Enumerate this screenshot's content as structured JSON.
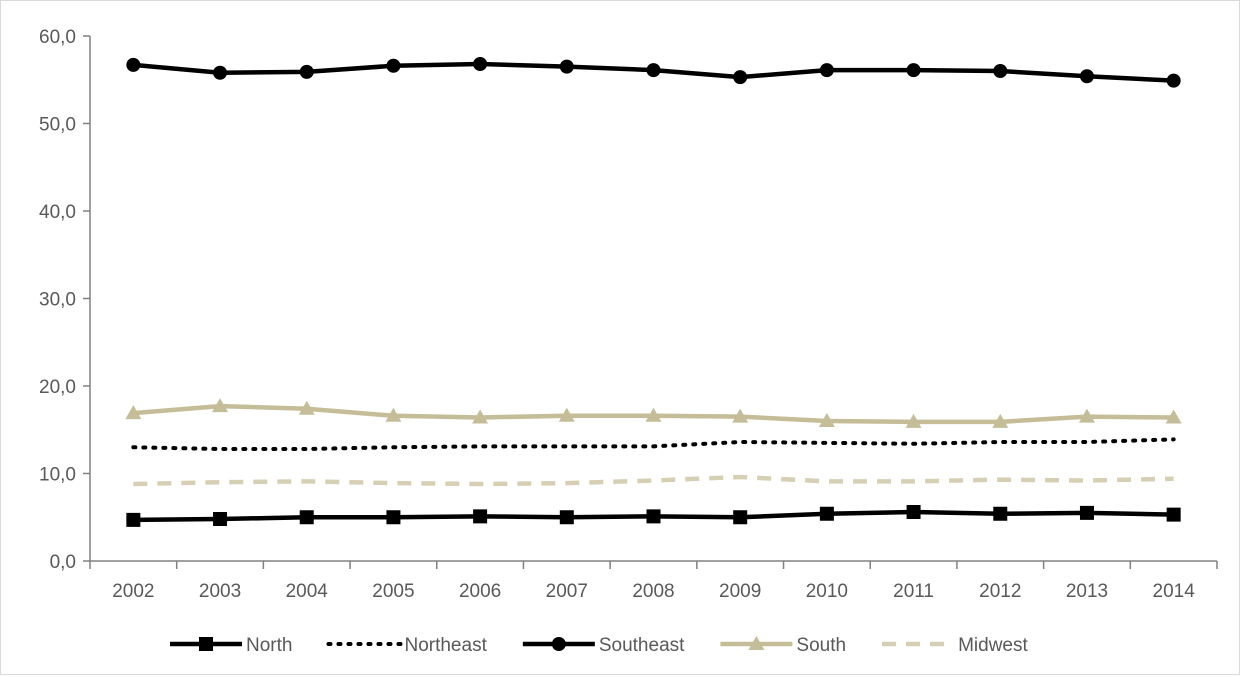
{
  "chart_data": {
    "type": "line",
    "title": "",
    "xlabel": "",
    "ylabel": "",
    "categories": [
      "2002",
      "2003",
      "2004",
      "2005",
      "2006",
      "2007",
      "2008",
      "2009",
      "2010",
      "2011",
      "2012",
      "2013",
      "2014"
    ],
    "ylim": [
      0,
      60
    ],
    "yticks": [
      0,
      10,
      20,
      30,
      40,
      50,
      60
    ],
    "ytick_labels": [
      "0,0",
      "10,0",
      "20,0",
      "30,0",
      "40,0",
      "50,0",
      "60,0"
    ],
    "grid": false,
    "legend_position": "bottom",
    "series": [
      {
        "name": "North",
        "values": [
          4.7,
          4.8,
          5.0,
          5.0,
          5.1,
          5.0,
          5.1,
          5.0,
          5.4,
          5.6,
          5.4,
          5.5,
          5.3
        ],
        "color": "#000000",
        "style": "solid",
        "marker": "square"
      },
      {
        "name": "Northeast",
        "values": [
          13.0,
          12.8,
          12.8,
          13.0,
          13.1,
          13.1,
          13.1,
          13.6,
          13.5,
          13.4,
          13.6,
          13.6,
          13.9
        ],
        "color": "#000000",
        "style": "dotted",
        "marker": "none"
      },
      {
        "name": "Southeast",
        "values": [
          56.7,
          55.8,
          55.9,
          56.6,
          56.8,
          56.5,
          56.1,
          55.3,
          56.1,
          56.1,
          56.0,
          55.4,
          54.9
        ],
        "color": "#000000",
        "style": "solid",
        "marker": "circle"
      },
      {
        "name": "South",
        "values": [
          16.9,
          17.7,
          17.4,
          16.6,
          16.4,
          16.6,
          16.6,
          16.5,
          16.0,
          15.9,
          15.9,
          16.5,
          16.4
        ],
        "color": "#C5BD97",
        "style": "solid",
        "marker": "triangle"
      },
      {
        "name": "Midwest",
        "values": [
          8.8,
          9.0,
          9.1,
          8.9,
          8.8,
          8.9,
          9.2,
          9.6,
          9.1,
          9.1,
          9.3,
          9.2,
          9.4
        ],
        "color": "#D6CFB4",
        "style": "dashed",
        "marker": "none"
      }
    ]
  }
}
